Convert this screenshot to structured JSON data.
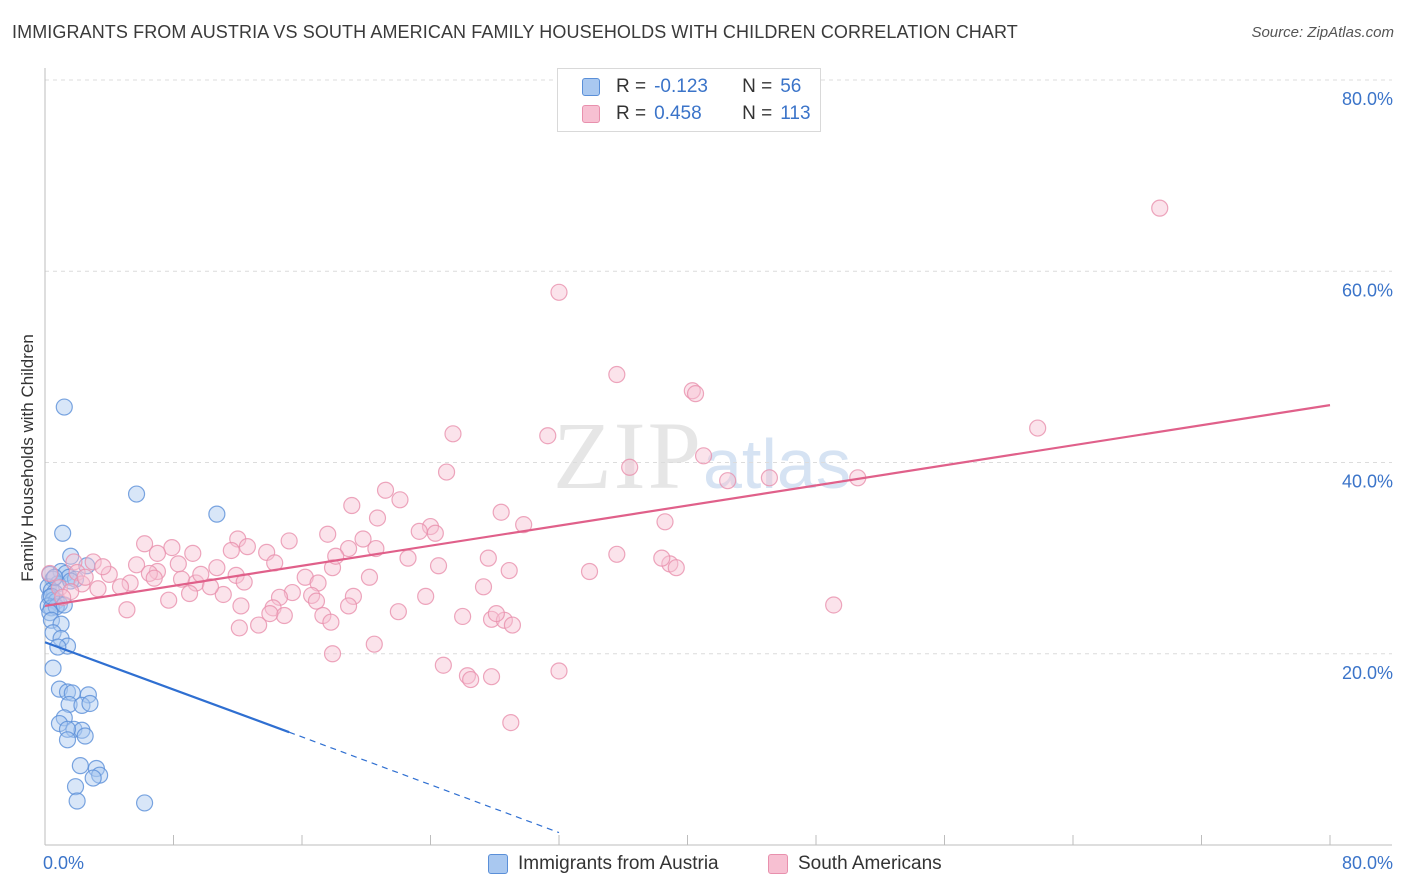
{
  "header": {
    "title": "IMMIGRANTS FROM AUSTRIA VS SOUTH AMERICAN FAMILY HOUSEHOLDS WITH CHILDREN CORRELATION CHART",
    "source": "Source: ZipAtlas.com"
  },
  "watermark": {
    "main": "ZIP",
    "sub": "atlas"
  },
  "legend": {
    "rows": [
      {
        "r_label": "R =",
        "r_value": "-0.123",
        "n_label": "N =",
        "n_value": "56"
      },
      {
        "r_label": "R =",
        "r_value": "0.458",
        "n_label": "N =",
        "n_value": "113"
      }
    ],
    "bottom": [
      "Immigrants from Austria",
      "South Americans"
    ]
  },
  "colors": {
    "blue_fill": "#a9c8f0",
    "blue_stroke": "#5a8fd8",
    "blue_line": "#2f6fd1",
    "pink_fill": "#f7c0d2",
    "pink_stroke": "#e890ad",
    "pink_line": "#e0608a",
    "axis_text": "#3b74c9",
    "grid": "#dcdcdc"
  },
  "chart_data": {
    "type": "scatter",
    "title": "IMMIGRANTS FROM AUSTRIA VS SOUTH AMERICAN FAMILY HOUSEHOLDS WITH CHILDREN CORRELATION CHART",
    "xlabel": "",
    "ylabel": "Family Households with Children",
    "xlim": [
      0,
      80
    ],
    "ylim": [
      0,
      80
    ],
    "x_tick_labels": [
      "0.0%",
      "80.0%"
    ],
    "y_ticks": [
      20,
      40,
      60,
      80
    ],
    "y_tick_labels": [
      "20.0%",
      "40.0%",
      "60.0%",
      "80.0%"
    ],
    "grid": true,
    "series": [
      {
        "name": "Immigrants from Austria",
        "color": "blue",
        "trend": {
          "x0": 0,
          "y0": 21.2,
          "x1": 15.2,
          "y1": 11.8,
          "dash_to_x": 32,
          "dash_to_y": 1.3
        },
        "points": [
          [
            1.2,
            45.8
          ],
          [
            5.7,
            36.7
          ],
          [
            10.7,
            34.6
          ],
          [
            1.1,
            32.6
          ],
          [
            1.6,
            30.2
          ],
          [
            0.3,
            28.3
          ],
          [
            1.0,
            28.6
          ],
          [
            1.3,
            28.4
          ],
          [
            2.6,
            29.2
          ],
          [
            0.5,
            27.8
          ],
          [
            1.5,
            28.0
          ],
          [
            1.9,
            27.8
          ],
          [
            0.8,
            27.3
          ],
          [
            0.2,
            27.0
          ],
          [
            0.4,
            26.6
          ],
          [
            0.6,
            26.4
          ],
          [
            0.3,
            25.9
          ],
          [
            0.5,
            25.6
          ],
          [
            0.7,
            25.5
          ],
          [
            0.9,
            25.2
          ],
          [
            0.2,
            25.0
          ],
          [
            0.4,
            24.8
          ],
          [
            0.7,
            24.9
          ],
          [
            0.3,
            24.3
          ],
          [
            0.4,
            23.5
          ],
          [
            1.0,
            23.1
          ],
          [
            0.5,
            22.2
          ],
          [
            1.0,
            21.6
          ],
          [
            1.4,
            20.8
          ],
          [
            0.8,
            20.7
          ],
          [
            0.5,
            18.5
          ],
          [
            0.9,
            16.3
          ],
          [
            1.4,
            16.0
          ],
          [
            1.7,
            15.9
          ],
          [
            2.7,
            15.7
          ],
          [
            1.5,
            14.7
          ],
          [
            2.3,
            14.6
          ],
          [
            2.8,
            14.8
          ],
          [
            1.2,
            13.3
          ],
          [
            0.9,
            12.7
          ],
          [
            1.8,
            12.1
          ],
          [
            2.3,
            12.0
          ],
          [
            1.4,
            12.1
          ],
          [
            2.5,
            11.4
          ],
          [
            1.4,
            11.0
          ],
          [
            2.2,
            8.3
          ],
          [
            3.2,
            8.0
          ],
          [
            3.4,
            7.3
          ],
          [
            3.0,
            7.0
          ],
          [
            1.9,
            6.1
          ],
          [
            2.0,
            4.6
          ],
          [
            6.2,
            4.4
          ],
          [
            0.6,
            28.0
          ],
          [
            1.6,
            27.6
          ],
          [
            0.4,
            26.0
          ],
          [
            1.2,
            25.1
          ]
        ]
      },
      {
        "name": "South Americans",
        "color": "pink",
        "trend": {
          "x0": 0,
          "y0": 25.0,
          "x1": 80,
          "y1": 46.0
        },
        "points": [
          [
            69.4,
            66.6
          ],
          [
            32.0,
            57.8
          ],
          [
            35.6,
            49.2
          ],
          [
            40.3,
            47.5
          ],
          [
            40.5,
            47.2
          ],
          [
            61.8,
            43.6
          ],
          [
            25.4,
            43.0
          ],
          [
            31.3,
            42.8
          ],
          [
            41.0,
            40.7
          ],
          [
            36.4,
            39.5
          ],
          [
            25.0,
            39.0
          ],
          [
            42.5,
            38.1
          ],
          [
            50.6,
            38.4
          ],
          [
            21.2,
            37.1
          ],
          [
            22.1,
            36.1
          ],
          [
            19.1,
            35.5
          ],
          [
            28.4,
            34.8
          ],
          [
            20.7,
            34.2
          ],
          [
            38.6,
            33.8
          ],
          [
            29.8,
            33.5
          ],
          [
            24.0,
            33.3
          ],
          [
            23.3,
            32.8
          ],
          [
            24.3,
            32.6
          ],
          [
            17.6,
            32.5
          ],
          [
            19.8,
            32.0
          ],
          [
            12.0,
            32.0
          ],
          [
            15.2,
            31.8
          ],
          [
            6.2,
            31.5
          ],
          [
            7.9,
            31.1
          ],
          [
            12.6,
            31.2
          ],
          [
            20.6,
            31.0
          ],
          [
            18.9,
            31.0
          ],
          [
            27.6,
            30.0
          ],
          [
            11.6,
            30.8
          ],
          [
            13.8,
            30.6
          ],
          [
            7.0,
            30.5
          ],
          [
            9.2,
            30.5
          ],
          [
            1.8,
            29.6
          ],
          [
            3.0,
            29.6
          ],
          [
            5.7,
            29.3
          ],
          [
            8.3,
            29.4
          ],
          [
            10.7,
            29.0
          ],
          [
            14.3,
            29.5
          ],
          [
            17.9,
            29.0
          ],
          [
            28.9,
            28.7
          ],
          [
            38.9,
            29.4
          ],
          [
            39.3,
            29.0
          ],
          [
            2.0,
            28.5
          ],
          [
            4.0,
            28.3
          ],
          [
            0.3,
            28.4
          ],
          [
            7.0,
            28.6
          ],
          [
            11.9,
            28.2
          ],
          [
            16.2,
            28.0
          ],
          [
            20.2,
            28.0
          ],
          [
            8.5,
            27.8
          ],
          [
            5.3,
            27.4
          ],
          [
            2.3,
            27.3
          ],
          [
            4.7,
            27.0
          ],
          [
            9.4,
            27.4
          ],
          [
            12.4,
            27.5
          ],
          [
            17.0,
            27.4
          ],
          [
            27.3,
            27.0
          ],
          [
            0.9,
            26.9
          ],
          [
            1.6,
            26.5
          ],
          [
            3.3,
            26.8
          ],
          [
            15.4,
            26.4
          ],
          [
            16.6,
            26.1
          ],
          [
            19.2,
            26.0
          ],
          [
            23.7,
            26.0
          ],
          [
            14.6,
            25.9
          ],
          [
            9.0,
            26.3
          ],
          [
            11.1,
            26.2
          ],
          [
            16.9,
            25.5
          ],
          [
            18.9,
            25.0
          ],
          [
            12.2,
            25.0
          ],
          [
            14.2,
            24.8
          ],
          [
            5.1,
            24.6
          ],
          [
            22.0,
            24.4
          ],
          [
            14.9,
            24.0
          ],
          [
            17.3,
            24.0
          ],
          [
            26.0,
            23.9
          ],
          [
            27.8,
            23.6
          ],
          [
            28.6,
            23.5
          ],
          [
            28.1,
            24.2
          ],
          [
            17.8,
            23.3
          ],
          [
            12.1,
            22.7
          ],
          [
            29.1,
            23.0
          ],
          [
            49.1,
            25.1
          ],
          [
            20.5,
            21.0
          ],
          [
            17.9,
            20.0
          ],
          [
            24.8,
            18.8
          ],
          [
            32.0,
            18.2
          ],
          [
            26.3,
            17.7
          ],
          [
            26.5,
            17.3
          ],
          [
            27.8,
            17.6
          ],
          [
            29.0,
            12.8
          ],
          [
            14.0,
            24.2
          ],
          [
            13.3,
            23.0
          ],
          [
            2.5,
            28.0
          ],
          [
            3.6,
            29.1
          ],
          [
            1.1,
            25.9
          ],
          [
            6.5,
            28.4
          ],
          [
            10.3,
            27.0
          ],
          [
            22.6,
            30.0
          ],
          [
            18.1,
            30.2
          ],
          [
            24.5,
            29.2
          ],
          [
            33.9,
            28.6
          ],
          [
            7.7,
            25.6
          ],
          [
            9.7,
            28.3
          ],
          [
            35.6,
            30.4
          ],
          [
            38.4,
            30.0
          ],
          [
            45.1,
            38.4
          ],
          [
            6.8,
            27.9
          ]
        ]
      }
    ]
  }
}
